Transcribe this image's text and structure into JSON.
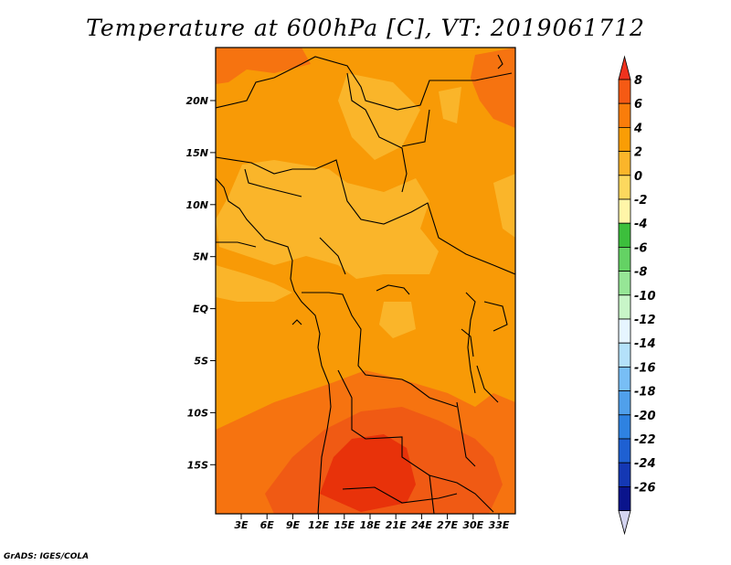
{
  "title": "Temperature at 600hPa [C], VT: 2019061712",
  "credit": "GrADS: IGES/COLA",
  "lat_labels": [
    "20N",
    "15N",
    "10N",
    "5N",
    "EQ",
    "5S",
    "10S",
    "15S"
  ],
  "lon_labels": [
    "3E",
    "6E",
    "9E",
    "12E",
    "15E",
    "18E",
    "21E",
    "24E",
    "27E",
    "30E",
    "33E"
  ],
  "colorbar": {
    "levels": [
      "8",
      "6",
      "4",
      "2",
      "0",
      "-2",
      "-4",
      "-6",
      "-8",
      "-10",
      "-12",
      "-14",
      "-16",
      "-18",
      "-20",
      "-22",
      "-24",
      "-26"
    ],
    "colors": [
      "#f0321e",
      "#f55a14",
      "#fa7d0a",
      "#fa9d05",
      "#fbb52a",
      "#fcd85e",
      "#fff5a8",
      "#3cbf3c",
      "#64d264",
      "#96e696",
      "#c8f5c8",
      "#e6f5ff",
      "#b4e1fa",
      "#78bef5",
      "#50a0eb",
      "#2e82e1",
      "#1e60d2",
      "#1438b4",
      "#0a148c",
      "#d4d4f0"
    ]
  },
  "map_colors": {
    "base": "#f89a06",
    "light": "#fab52a",
    "warm": "#f67310",
    "hot": "#f05a14",
    "hottest": "#e8320a"
  }
}
